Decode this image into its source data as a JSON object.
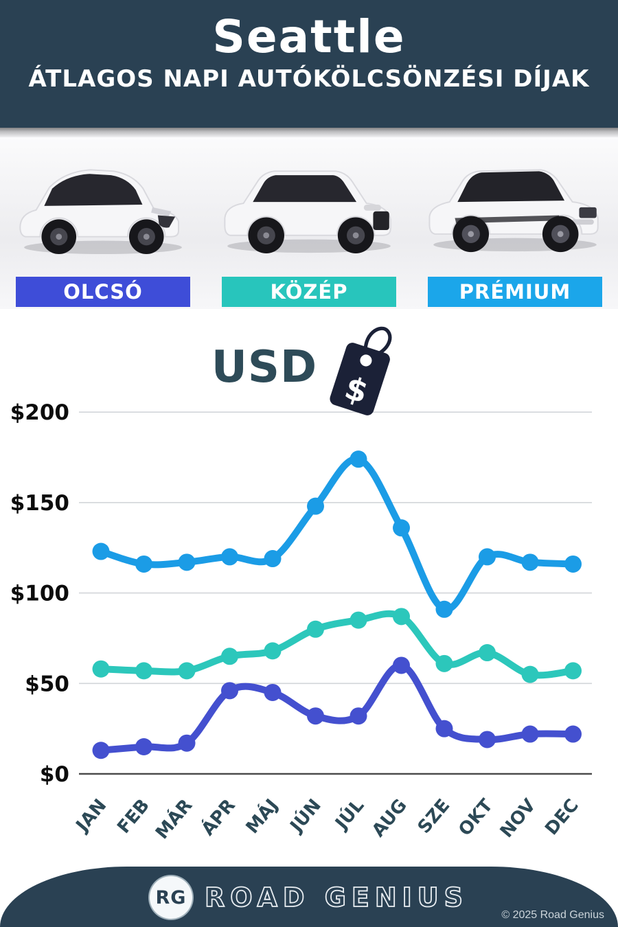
{
  "header": {
    "city": "Seattle",
    "subtitle": "ÁTLAGOS NAPI AUTÓKÖLCSÖNZÉSI DÍJAK",
    "background_color": "#2a4153"
  },
  "categories": [
    {
      "label": "OLCSÓ",
      "color": "#3e4dd8"
    },
    {
      "label": "KÖZÉP",
      "color": "#28c5bc"
    },
    {
      "label": "PRÉMIUM",
      "color": "#1ba6ea"
    }
  ],
  "currency": {
    "label": "USD",
    "tag_symbol": "$",
    "text_color": "#2e4b58",
    "tag_color": "#1b2137"
  },
  "chart_data": {
    "type": "line",
    "categories": [
      "JAN",
      "FEB",
      "MÁR",
      "ÁPR",
      "MÁJ",
      "JÚN",
      "JÚL",
      "AUG",
      "SZE",
      "OKT",
      "NOV",
      "DEC"
    ],
    "series": [
      {
        "name": "PRÉMIUM",
        "color": "#1b9ce6",
        "values": [
          123,
          116,
          117,
          120,
          119,
          148,
          174,
          136,
          91,
          120,
          117,
          116
        ]
      },
      {
        "name": "KÖZÉP",
        "color": "#2cc7bb",
        "values": [
          58,
          57,
          57,
          65,
          68,
          80,
          85,
          87,
          61,
          67,
          55,
          57
        ]
      },
      {
        "name": "OLCSÓ",
        "color": "#4450cf",
        "values": [
          13,
          15,
          17,
          46,
          45,
          32,
          32,
          60,
          25,
          19,
          22,
          22
        ]
      }
    ],
    "y_ticks": [
      "$0",
      "$50",
      "$100",
      "$150",
      "$200"
    ],
    "ylim": [
      0,
      200
    ],
    "grid": true,
    "legend_position": "none",
    "title": "",
    "xlabel": "",
    "ylabel": "USD"
  },
  "footer": {
    "logo_initials": "RG",
    "brand": "ROAD GENIUS",
    "copyright": "© 2025 Road Genius",
    "background_color": "#2a4153"
  }
}
